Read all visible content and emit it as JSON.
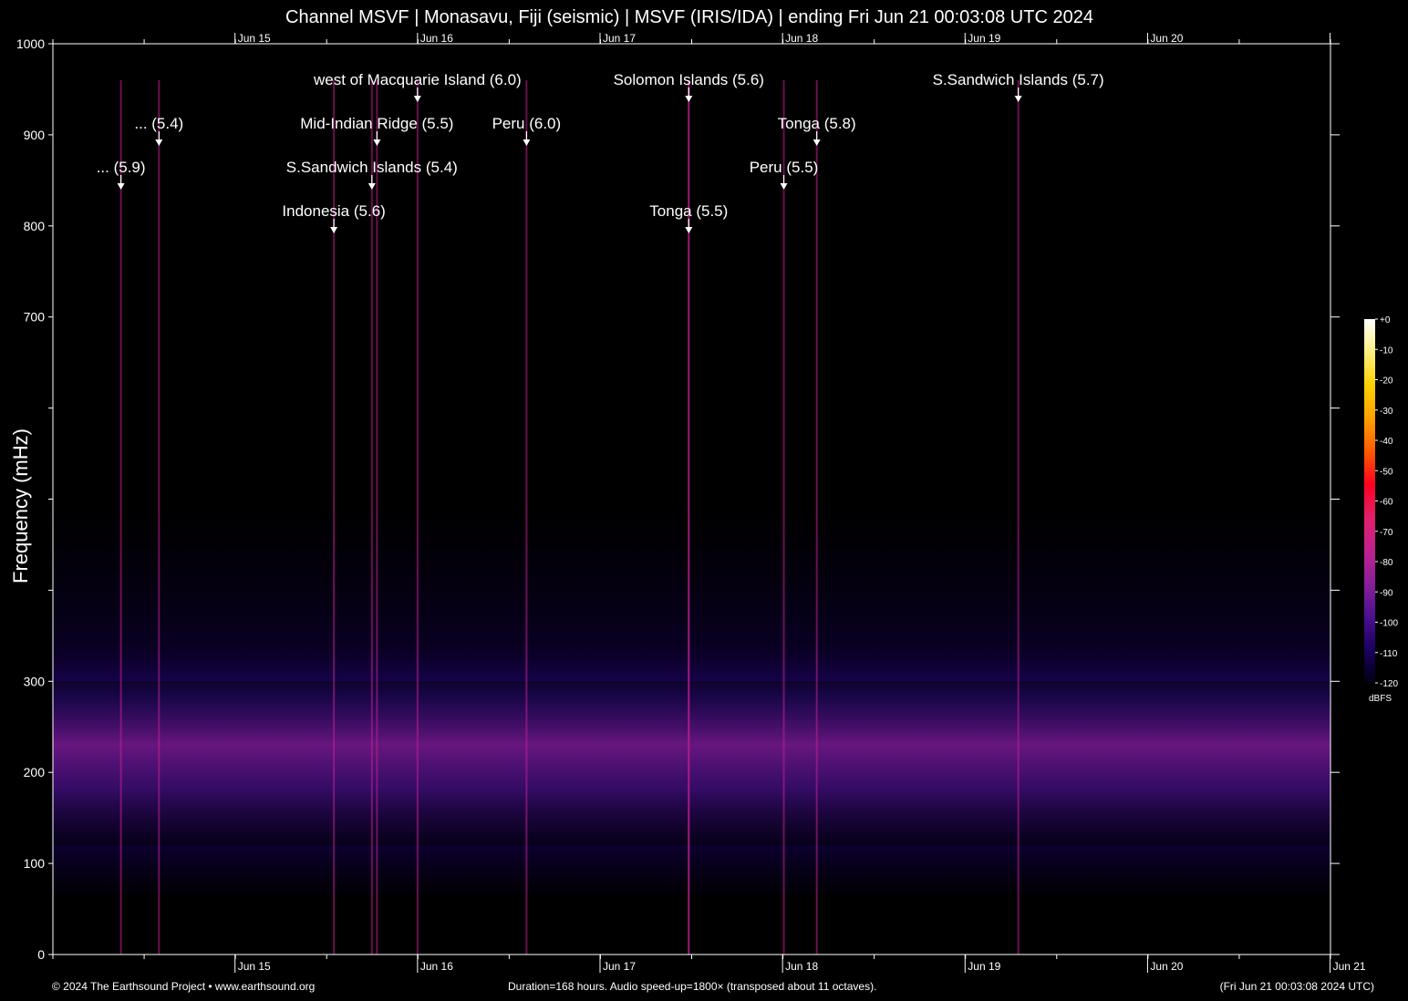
{
  "title": "Channel MSVF | Monasavu, Fiji (seismic) | MSVF (IRIS/IDA) | ending Fri Jun 21 00:03:08 UTC 2024",
  "footer": {
    "left": "© 2024 The Earthsound Project • www.earthsound.org",
    "center": "Duration=168 hours. Audio speed-up=1800× (transposed about 11 octaves).",
    "right": "(Fri Jun 21 00:03:08 2024 UTC)"
  },
  "colors": {
    "background": "#000000",
    "axis": "#ffffff",
    "noise_band": "#8a1f9a",
    "event_line": "#c0208f"
  },
  "chart_data": {
    "type": "heatmap",
    "title": "Channel MSVF | Monasavu, Fiji (seismic) | MSVF (IRIS/IDA) | ending Fri Jun 21 00:03:08 UTC 2024",
    "xlabel": "",
    "ylabel": "Frequency (mHz)",
    "x_unit": "days",
    "xlim": [
      "2024-06-14 00:03:08",
      "2024-06-21 00:03:08"
    ],
    "ylim": [
      0,
      1000
    ],
    "x_ticks": [
      {
        "date": "2024-06-15",
        "label": "Jun 15"
      },
      {
        "date": "2024-06-16",
        "label": "Jun 16"
      },
      {
        "date": "2024-06-17",
        "label": "Jun 17"
      },
      {
        "date": "2024-06-18",
        "label": "Jun 18"
      },
      {
        "date": "2024-06-19",
        "label": "Jun 19"
      },
      {
        "date": "2024-06-20",
        "label": "Jun 20"
      },
      {
        "date": "2024-06-21",
        "label": "Jun 21"
      }
    ],
    "y_ticks": [
      0,
      100,
      200,
      300,
      400,
      500,
      600,
      700,
      800,
      900,
      1000
    ],
    "y_tick_labels": [
      "0",
      "100",
      "200",
      "300",
      "",
      "",
      "",
      "700",
      "800",
      "900",
      "1000"
    ],
    "colorbar": {
      "unit": "dBFS",
      "range": [
        -120,
        0
      ],
      "ticks": [
        "+0",
        "-10",
        "-20",
        "-30",
        "-40",
        "-50",
        "-60",
        "-70",
        "-80",
        "-90",
        "-100",
        "-110",
        "-120"
      ],
      "stops": [
        "#000010",
        "#1a0060",
        "#4a1090",
        "#8a1f9a",
        "#c0208f",
        "#e0206a",
        "#ff0020",
        "#ff5a00",
        "#ffa000",
        "#ffd000",
        "#fff080",
        "#ffffff"
      ]
    },
    "noise_band_mhz": [
      130,
      260
    ],
    "events": [
      {
        "label": "... (5.9)",
        "time": "2024-06-14 09:00",
        "row": 3
      },
      {
        "label": "... (5.4)",
        "time": "2024-06-14 14:00",
        "row": 2
      },
      {
        "label": "west of Macquarie Island (6.0)",
        "time": "2024-06-16 00:00",
        "row": 1
      },
      {
        "label": "Mid-Indian Ridge (5.5)",
        "time": "2024-06-15 18:40",
        "row": 2
      },
      {
        "label": "S.Sandwich Islands (5.4)",
        "time": "2024-06-15 18:00",
        "row": 3
      },
      {
        "label": "Indonesia (5.6)",
        "time": "2024-06-15 13:00",
        "row": 4
      },
      {
        "label": "Peru (6.0)",
        "time": "2024-06-16 14:20",
        "row": 2
      },
      {
        "label": "Solomon Islands (5.6)",
        "time": "2024-06-17 11:40",
        "row": 1
      },
      {
        "label": "Tonga (5.5)",
        "time": "2024-06-17 11:40",
        "row": 4
      },
      {
        "label": "Tonga (5.8)",
        "time": "2024-06-18 04:30",
        "row": 2
      },
      {
        "label": "Peru (5.5)",
        "time": "2024-06-18 00:10",
        "row": 3
      },
      {
        "label": "S.Sandwich Islands (5.7)",
        "time": "2024-06-19 07:00",
        "row": 1
      }
    ]
  }
}
